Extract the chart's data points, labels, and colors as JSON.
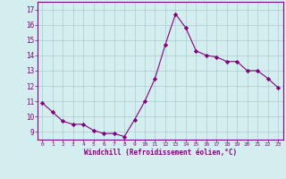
{
  "x": [
    0,
    1,
    2,
    3,
    4,
    5,
    6,
    7,
    8,
    9,
    10,
    11,
    12,
    13,
    14,
    15,
    16,
    17,
    18,
    19,
    20,
    21,
    22,
    23
  ],
  "y": [
    10.9,
    10.3,
    9.7,
    9.5,
    9.5,
    9.1,
    8.9,
    8.9,
    8.7,
    9.8,
    11.0,
    12.5,
    14.7,
    16.7,
    15.8,
    14.3,
    14.0,
    13.9,
    13.6,
    13.6,
    13.0,
    13.0,
    12.5,
    11.9
  ],
  "line_color": "#800080",
  "marker": "D",
  "marker_size": 2.2,
  "bg_color": "#d4eef0",
  "grid_color": "#aaccd0",
  "xlabel": "Windchill (Refroidissement éolien,°C)",
  "ylabel_ticks": [
    9,
    10,
    11,
    12,
    13,
    14,
    15,
    16,
    17
  ],
  "xtick_labels": [
    "0",
    "1",
    "2",
    "3",
    "4",
    "5",
    "6",
    "7",
    "8",
    "9",
    "10",
    "11",
    "12",
    "13",
    "14",
    "15",
    "16",
    "17",
    "18",
    "19",
    "20",
    "21",
    "22",
    "23"
  ],
  "xlim": [
    -0.5,
    23.5
  ],
  "ylim": [
    8.5,
    17.5
  ],
  "xlabel_color": "#800080",
  "tick_color": "#800080",
  "spine_color": "#800080"
}
